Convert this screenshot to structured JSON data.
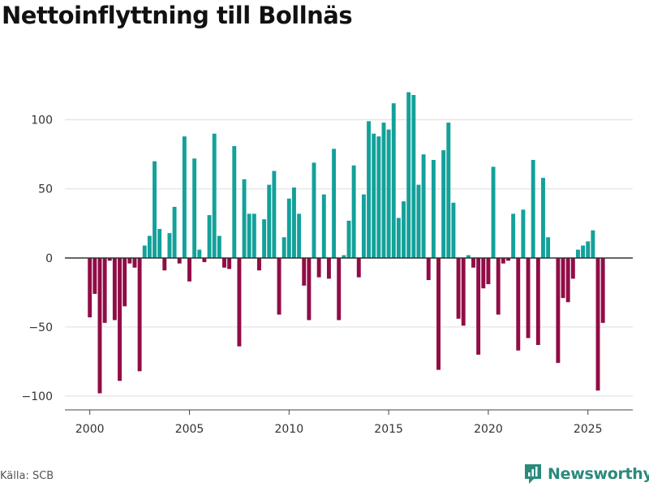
{
  "title": "Nettoinflyttning till Bollnäs",
  "source": "Källa: SCB",
  "brand": "Newsworthy",
  "colors": {
    "positive": "#13a19a",
    "negative": "#910c46",
    "grid": "#dddddd",
    "zero": "#333333"
  },
  "chart_data": {
    "type": "bar",
    "title": "Nettoinflyttning till Bollnäs",
    "xlabel": "",
    "ylabel": "",
    "xlim": [
      1998.75,
      2027.25
    ],
    "ylim": [
      -110,
      128
    ],
    "yticks": [
      100,
      50,
      0,
      -50,
      -100
    ],
    "ytick_labels": [
      "100",
      "50",
      "0",
      "−50",
      "−100"
    ],
    "xticks": [
      2000,
      2005,
      2010,
      2015,
      2020,
      2025
    ],
    "xtick_labels": [
      "2000",
      "2005",
      "2010",
      "2015",
      "2020",
      "2025"
    ],
    "bar_width_years": 0.2,
    "x": [
      2000.0,
      2000.25,
      2000.5,
      2000.75,
      2001.0,
      2001.25,
      2001.5,
      2001.75,
      2002.0,
      2002.25,
      2002.5,
      2002.75,
      2003.0,
      2003.25,
      2003.5,
      2003.75,
      2004.0,
      2004.25,
      2004.5,
      2004.75,
      2005.0,
      2005.25,
      2005.5,
      2005.75,
      2006.0,
      2006.25,
      2006.5,
      2006.75,
      2007.0,
      2007.25,
      2007.5,
      2007.75,
      2008.0,
      2008.25,
      2008.5,
      2008.75,
      2009.0,
      2009.25,
      2009.5,
      2009.75,
      2010.0,
      2010.25,
      2010.5,
      2010.75,
      2011.0,
      2011.25,
      2011.5,
      2011.75,
      2012.0,
      2012.25,
      2012.5,
      2012.75,
      2013.0,
      2013.25,
      2013.5,
      2013.75,
      2014.0,
      2014.25,
      2014.5,
      2014.75,
      2015.0,
      2015.25,
      2015.5,
      2015.75,
      2016.0,
      2016.25,
      2016.5,
      2016.75,
      2017.0,
      2017.25,
      2017.5,
      2017.75,
      2018.0,
      2018.25,
      2018.5,
      2018.75,
      2019.0,
      2019.25,
      2019.5,
      2019.75,
      2020.0,
      2020.25,
      2020.5,
      2020.75,
      2021.0,
      2021.25,
      2021.5,
      2021.75,
      2022.0,
      2022.25,
      2022.5,
      2022.75,
      2023.0,
      2023.25,
      2023.5,
      2023.75,
      2024.0,
      2024.25,
      2024.5,
      2024.75,
      2025.0,
      2025.25,
      2025.5,
      2025.75
    ],
    "values": [
      -43,
      -26,
      -98,
      -47,
      -2,
      -45,
      -89,
      -35,
      -4,
      -7,
      -82,
      9,
      16,
      70,
      21,
      -9,
      18,
      37,
      -4,
      88,
      -17,
      72,
      6,
      -3,
      31,
      90,
      16,
      -7,
      -8,
      81,
      -64,
      57,
      32,
      32,
      -9,
      28,
      53,
      63,
      -41,
      15,
      43,
      51,
      32,
      -20,
      -45,
      69,
      -14,
      46,
      -15,
      79,
      -45,
      2,
      27,
      67,
      -14,
      46,
      99,
      90,
      88,
      98,
      93,
      112,
      29,
      41,
      120,
      118,
      53,
      75,
      -16,
      71,
      -81,
      78,
      98,
      40,
      -44,
      -49,
      2,
      -7,
      -70,
      -22,
      -19,
      66,
      -41,
      -4,
      -2,
      32,
      -67,
      35,
      -58,
      71,
      -63,
      58,
      15,
      0,
      -76,
      -29,
      -32,
      -15,
      6,
      9,
      12,
      20,
      -96,
      -47
    ]
  }
}
